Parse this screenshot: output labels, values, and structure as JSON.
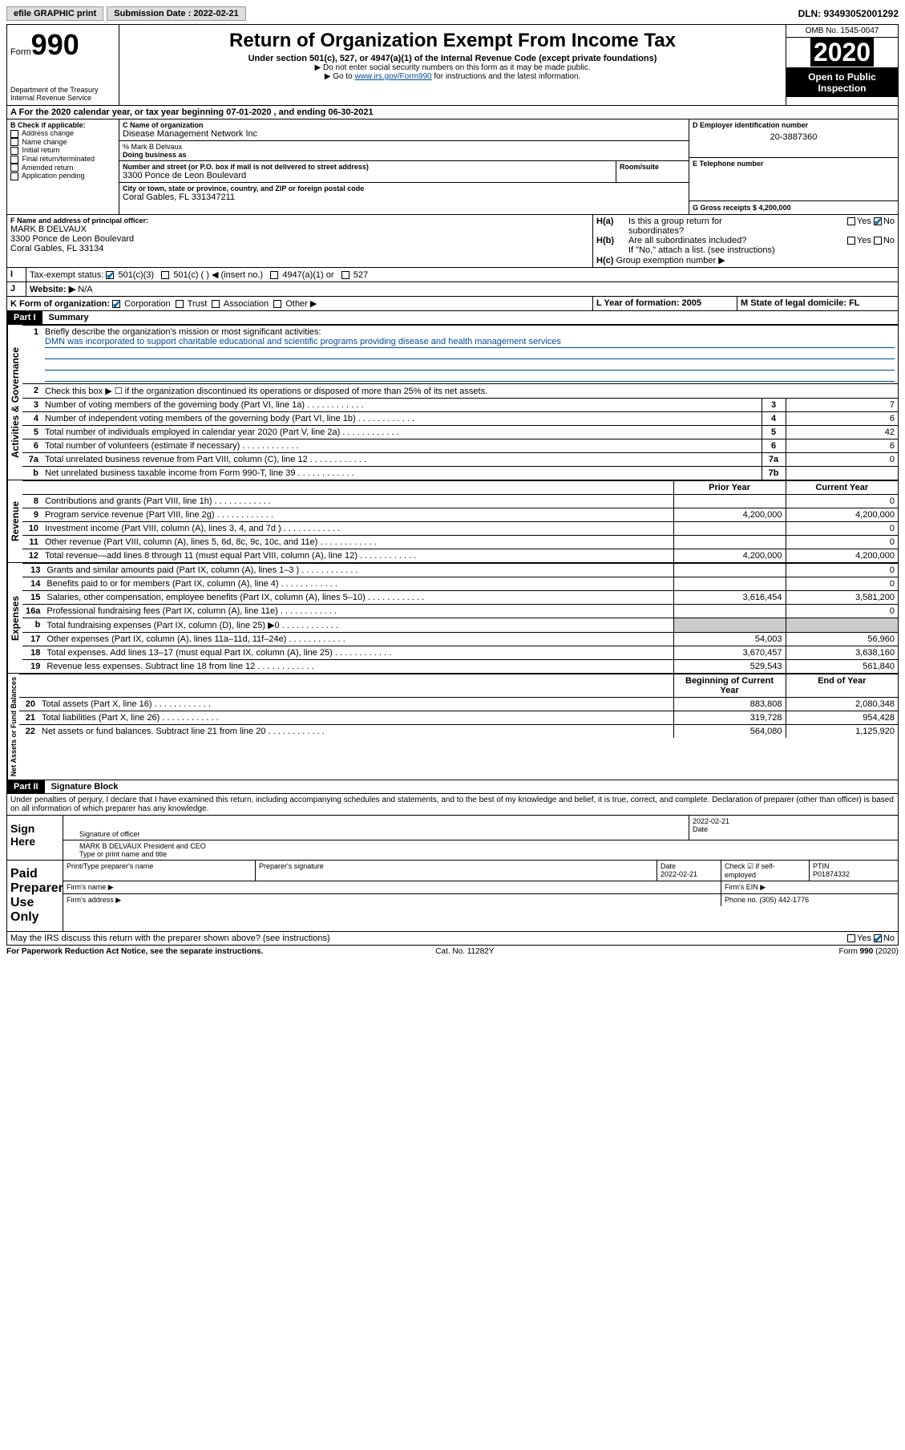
{
  "topbar": {
    "efile": "efile GRAPHIC print",
    "submission_label": "Submission Date : 2022-02-21",
    "dln": "DLN: 93493052001292"
  },
  "header": {
    "form_label": "Form",
    "form_num": "990",
    "dept": "Department of the Treasury",
    "irs": "Internal Revenue Service",
    "title": "Return of Organization Exempt From Income Tax",
    "subtitle": "Under section 501(c), 527, or 4947(a)(1) of the Internal Revenue Code (except private foundations)",
    "note1": "▶ Do not enter social security numbers on this form as it may be made public.",
    "note2_pre": "▶ Go to ",
    "note2_link": "www.irs.gov/Form990",
    "note2_post": " for instructions and the latest information.",
    "omb": "OMB No. 1545-0047",
    "year": "2020",
    "open": "Open to Public Inspection"
  },
  "lineA": "For the 2020 calendar year, or tax year beginning 07-01-2020    , and ending 06-30-2021",
  "boxB": {
    "label": "B Check if applicable:",
    "items": [
      "Address change",
      "Name change",
      "Initial return",
      "Final return/terminated",
      "Amended return",
      "Application pending"
    ]
  },
  "boxC": {
    "label": "C Name of organization",
    "name": "Disease Management Network Inc",
    "care_label": "% Mark B Delvaux",
    "dba_label": "Doing business as",
    "addr_label": "Number and street (or P.O. box if mail is not delivered to street address)",
    "room_label": "Room/suite",
    "addr": "3300 Ponce de Leon Boulevard",
    "city_label": "City or town, state or province, country, and ZIP or foreign postal code",
    "city": "Coral Gables, FL  331347211"
  },
  "boxD": {
    "label": "D Employer identification number",
    "val": "20-3887360"
  },
  "boxE": {
    "label": "E Telephone number",
    "val": ""
  },
  "boxG": {
    "label": "G Gross receipts $ 4,200,000"
  },
  "boxF": {
    "label": "F Name and address of principal officer:",
    "name": "MARK B DELVAUX",
    "addr1": "3300 Ponce de Leon Boulevard",
    "addr2": "Coral Gables, FL  33134"
  },
  "boxH": {
    "a": "Is this a group return for",
    "a2": "subordinates?",
    "b": "Are all subordinates included?",
    "note": "If \"No,\" attach a list. (see instructions)",
    "c": "Group exemption number ▶"
  },
  "lineI": {
    "label": "Tax-exempt status:",
    "opts": [
      "501(c)(3)",
      "501(c) (  ) ◀ (insert no.)",
      "4947(a)(1) or",
      "527"
    ]
  },
  "lineJ": {
    "label": "Website: ▶",
    "val": "N/A"
  },
  "lineK": {
    "label": "K Form of organization:",
    "opts": [
      "Corporation",
      "Trust",
      "Association",
      "Other ▶"
    ]
  },
  "lineL": {
    "label": "L Year of formation: 2005"
  },
  "lineM": {
    "label": "M State of legal domicile: FL"
  },
  "part1": {
    "hdr": "Part I",
    "title": "Summary",
    "side_gov": "Activities & Governance",
    "side_rev": "Revenue",
    "side_exp": "Expenses",
    "side_net": "Net Assets or Fund Balances",
    "l1": "Briefly describe the organization's mission or most significant activities:",
    "l1val": "DMN was incorporated to support charitable educational and scientific programs providing disease and health management services",
    "l2": "Check this box ▶ ☐  if the organization discontinued its operations or disposed of more than 25% of its net assets.",
    "rows_gov": [
      {
        "n": "3",
        "t": "Number of voting members of the governing body (Part VI, line 1a)",
        "box": "3",
        "v": "7"
      },
      {
        "n": "4",
        "t": "Number of independent voting members of the governing body (Part VI, line 1b)",
        "box": "4",
        "v": "6"
      },
      {
        "n": "5",
        "t": "Total number of individuals employed in calendar year 2020 (Part V, line 2a)",
        "box": "5",
        "v": "42"
      },
      {
        "n": "6",
        "t": "Total number of volunteers (estimate if necessary)",
        "box": "6",
        "v": "6"
      },
      {
        "n": "7a",
        "t": "Total unrelated business revenue from Part VIII, column (C), line 12",
        "box": "7a",
        "v": "0"
      },
      {
        "n": "b",
        "t": "Net unrelated business taxable income from Form 990-T, line 39",
        "box": "7b",
        "v": ""
      }
    ],
    "col_prior": "Prior Year",
    "col_curr": "Current Year",
    "rows_rev": [
      {
        "n": "8",
        "t": "Contributions and grants (Part VIII, line 1h)",
        "p": "",
        "c": "0"
      },
      {
        "n": "9",
        "t": "Program service revenue (Part VIII, line 2g)",
        "p": "4,200,000",
        "c": "4,200,000"
      },
      {
        "n": "10",
        "t": "Investment income (Part VIII, column (A), lines 3, 4, and 7d )",
        "p": "",
        "c": "0"
      },
      {
        "n": "11",
        "t": "Other revenue (Part VIII, column (A), lines 5, 6d, 8c, 9c, 10c, and 11e)",
        "p": "",
        "c": "0"
      },
      {
        "n": "12",
        "t": "Total revenue—add lines 8 through 11 (must equal Part VIII, column (A), line 12)",
        "p": "4,200,000",
        "c": "4,200,000"
      }
    ],
    "rows_exp": [
      {
        "n": "13",
        "t": "Grants and similar amounts paid (Part IX, column (A), lines 1–3 )",
        "p": "",
        "c": "0"
      },
      {
        "n": "14",
        "t": "Benefits paid to or for members (Part IX, column (A), line 4)",
        "p": "",
        "c": "0"
      },
      {
        "n": "15",
        "t": "Salaries, other compensation, employee benefits (Part IX, column (A), lines 5–10)",
        "p": "3,616,454",
        "c": "3,581,200"
      },
      {
        "n": "16a",
        "t": "Professional fundraising fees (Part IX, column (A), line 11e)",
        "p": "",
        "c": "0"
      },
      {
        "n": "b",
        "t": "Total fundraising expenses (Part IX, column (D), line 25) ▶0",
        "p": "shade",
        "c": "shade"
      },
      {
        "n": "17",
        "t": "Other expenses (Part IX, column (A), lines 11a–11d, 11f–24e)",
        "p": "54,003",
        "c": "56,960"
      },
      {
        "n": "18",
        "t": "Total expenses. Add lines 13–17 (must equal Part IX, column (A), line 25)",
        "p": "3,670,457",
        "c": "3,638,160"
      },
      {
        "n": "19",
        "t": "Revenue less expenses. Subtract line 18 from line 12",
        "p": "529,543",
        "c": "561,840"
      }
    ],
    "col_beg": "Beginning of Current Year",
    "col_end": "End of Year",
    "rows_net": [
      {
        "n": "20",
        "t": "Total assets (Part X, line 16)",
        "p": "883,808",
        "c": "2,080,348"
      },
      {
        "n": "21",
        "t": "Total liabilities (Part X, line 26)",
        "p": "319,728",
        "c": "954,428"
      },
      {
        "n": "22",
        "t": "Net assets or fund balances. Subtract line 21 from line 20",
        "p": "564,080",
        "c": "1,125,920"
      }
    ]
  },
  "part2": {
    "hdr": "Part II",
    "title": "Signature Block",
    "perjury": "Under penalties of perjury, I declare that I have examined this return, including accompanying schedules and statements, and to the best of my knowledge and belief, it is true, correct, and complete. Declaration of preparer (other than officer) is based on all information of which preparer has any knowledge.",
    "sign_here": "Sign Here",
    "sig_officer": "Signature of officer",
    "date": "Date",
    "date_val": "2022-02-21",
    "name_title": "MARK B DELVAUX  President and CEO",
    "name_title_lbl": "Type or print name and title",
    "paid": "Paid Preparer Use Only",
    "prep_name": "Print/Type preparer's name",
    "prep_sig": "Preparer's signature",
    "prep_date": "Date",
    "prep_date_val": "2022-02-21",
    "check_self": "Check ☑ if self-employed",
    "ptin_lbl": "PTIN",
    "ptin": "P01874332",
    "firm_name": "Firm's name    ▶",
    "firm_ein": "Firm's EIN ▶",
    "firm_addr": "Firm's address ▶",
    "phone_lbl": "Phone no. (305) 442-1776",
    "discuss": "May the IRS discuss this return with the preparer shown above? (see instructions)"
  },
  "footer": {
    "pra": "For Paperwork Reduction Act Notice, see the separate instructions.",
    "cat": "Cat. No. 11282Y",
    "form": "Form 990 (2020)"
  }
}
